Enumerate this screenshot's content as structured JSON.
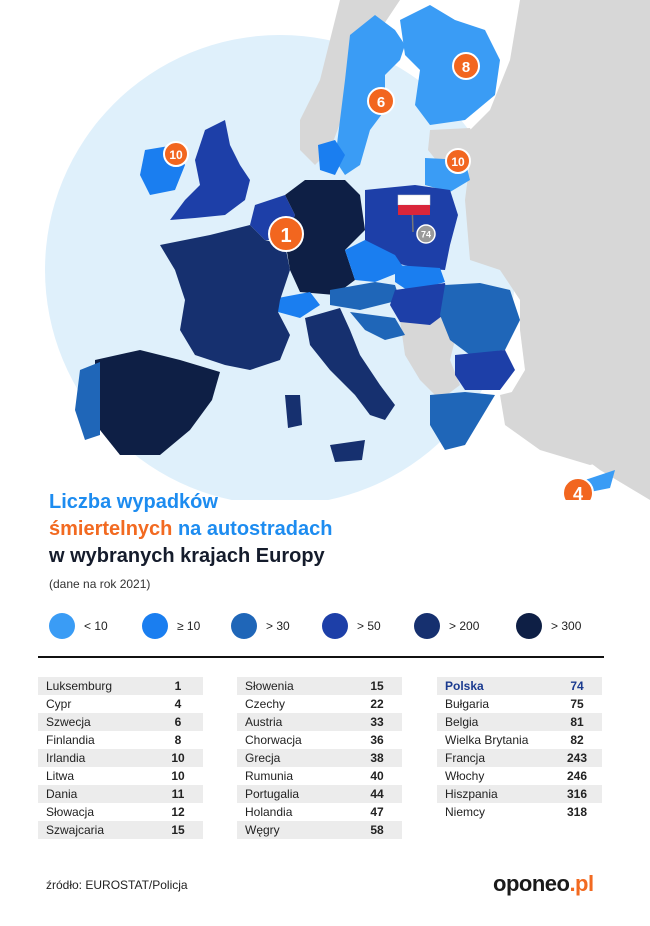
{
  "title": {
    "line1": "Liczba wypadków",
    "line2_a": "śmiertelnych",
    "line2_b": " na autostradach",
    "line3": "w wybranych krajach Europy"
  },
  "subtitle": "(dane na rok 2021)",
  "legend": [
    {
      "label": "< 10",
      "color": "#3a9cf5"
    },
    {
      "label": "≥ 10",
      "color": "#1a7ef0"
    },
    {
      "label": "> 30",
      "color": "#1f66b8"
    },
    {
      "label": "> 50",
      "color": "#1d3fa8"
    },
    {
      "label": "> 200",
      "color": "#16306f"
    },
    {
      "label": "> 300",
      "color": "#0e1f45"
    }
  ],
  "map_markers": [
    {
      "country": "Luksemburg",
      "value": "1"
    },
    {
      "country": "Cypr",
      "value": "4"
    },
    {
      "country": "Szwecja",
      "value": "6"
    },
    {
      "country": "Finlandia",
      "value": "8"
    },
    {
      "country": "Irlandia",
      "value": "10"
    },
    {
      "country": "Litwa",
      "value": "10"
    },
    {
      "country": "Polska",
      "value": "74"
    }
  ],
  "table": {
    "col1": [
      {
        "country": "Luksemburg",
        "value": "1"
      },
      {
        "country": "Cypr",
        "value": "4"
      },
      {
        "country": "Szwecja",
        "value": "6"
      },
      {
        "country": "Finlandia",
        "value": "8"
      },
      {
        "country": "Irlandia",
        "value": "10"
      },
      {
        "country": "Litwa",
        "value": "10"
      },
      {
        "country": "Dania",
        "value": "11"
      },
      {
        "country": "Słowacja",
        "value": "12"
      },
      {
        "country": "Szwajcaria",
        "value": "15"
      }
    ],
    "col2": [
      {
        "country": "Słowenia",
        "value": "15"
      },
      {
        "country": "Czechy",
        "value": "22"
      },
      {
        "country": "Austria",
        "value": "33"
      },
      {
        "country": "Chorwacja",
        "value": "36"
      },
      {
        "country": "Grecja",
        "value": "38"
      },
      {
        "country": "Rumunia",
        "value": "40"
      },
      {
        "country": "Portugalia",
        "value": "44"
      },
      {
        "country": "Holandia",
        "value": "47"
      },
      {
        "country": "Węgry",
        "value": "58"
      }
    ],
    "col3": [
      {
        "country": "Polska",
        "value": "74",
        "highlight": true
      },
      {
        "country": "Bułgaria",
        "value": "75"
      },
      {
        "country": "Belgia",
        "value": "81"
      },
      {
        "country": "Wielka Brytania",
        "value": "82"
      },
      {
        "country": "Francja",
        "value": "243"
      },
      {
        "country": "Włochy",
        "value": "246"
      },
      {
        "country": "Hiszpania",
        "value": "316"
      },
      {
        "country": "Niemcy",
        "value": "318"
      }
    ]
  },
  "source": "źródło: EUROSTAT/Policja",
  "logo": {
    "main": "oponeo",
    "suffix": ".pl"
  },
  "colors": {
    "marker_orange": "#f2661f",
    "marker_grey": "#9a9a9a",
    "halo": "#dff0fb",
    "non_eu_land": "#d9d9d9"
  }
}
